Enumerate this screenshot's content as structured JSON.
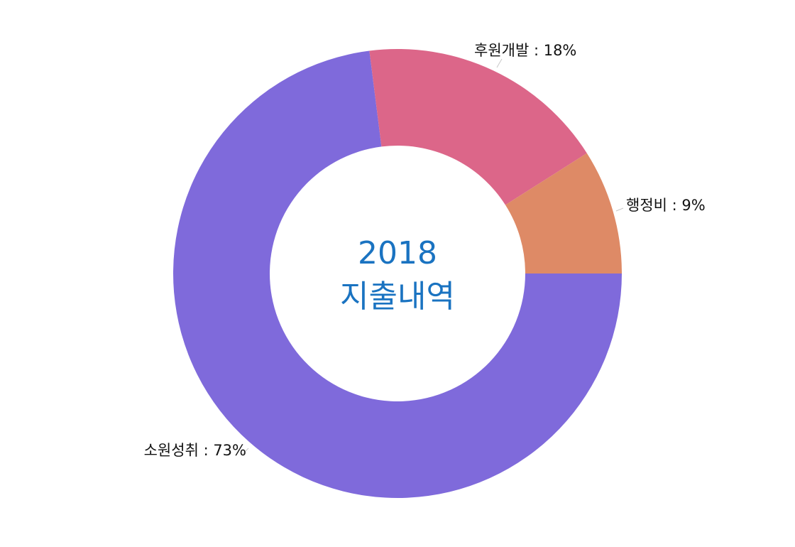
{
  "chart_data": {
    "type": "pie",
    "donut": true,
    "center_title_line1": "2018",
    "center_title_line2": "지출내역",
    "label_separator": " : ",
    "slices": [
      {
        "label": "소원성취",
        "value": 73,
        "display": "73%",
        "color": "#7f6adb"
      },
      {
        "label": "후원개발",
        "value": 18,
        "display": "18%",
        "color": "#dc6689"
      },
      {
        "label": "행정비",
        "value": 9,
        "display": "9%",
        "color": "#de8a66"
      }
    ]
  }
}
